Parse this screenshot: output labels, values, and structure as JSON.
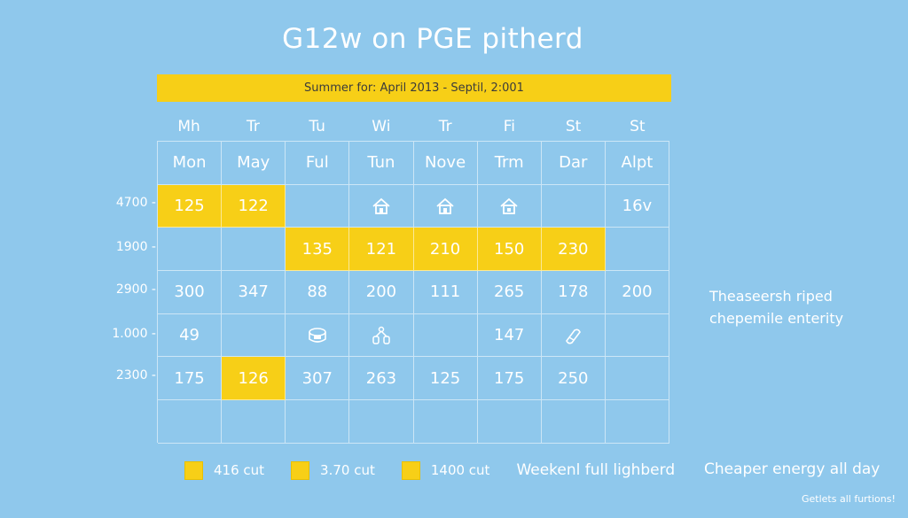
{
  "title": "G12w on PGE pitherd",
  "banner": "Summer for: April 2013 - Septil, 2:001",
  "days": [
    "Mh",
    "Tr",
    "Tu",
    "Wi",
    "Tr",
    "Fi",
    "St",
    "St"
  ],
  "y_labels": [
    "4700",
    "1900",
    "2900",
    "1.000",
    "2300"
  ],
  "rows": [
    [
      "Mon",
      "May",
      "Ful",
      "Tun",
      "Nove",
      "Trm",
      "Dar",
      "Alpt"
    ],
    [
      "125",
      "122",
      "",
      "house-icon",
      "house-icon",
      "house-icon",
      "",
      "16v"
    ],
    [
      "",
      "",
      "135",
      "121",
      "210",
      "150",
      "230",
      ""
    ],
    [
      "300",
      "347",
      "88",
      "200",
      "111",
      "265",
      "178",
      "200"
    ],
    [
      "49",
      "",
      "appliance-icon",
      "appliance-icon",
      "",
      "147",
      "appliance-icon",
      ""
    ],
    [
      "175",
      "126",
      "307",
      "263",
      "125",
      "175",
      "250",
      ""
    ],
    [
      "",
      "",
      "",
      "",
      "",
      "",
      "",
      ""
    ]
  ],
  "side_note": "Theaseersh riped chepemile enterity",
  "legend": [
    {
      "label": "416 cut"
    },
    {
      "label": "3.70 cut"
    },
    {
      "label": "1400 cut"
    }
  ],
  "legend_text": "Weekenl full lighberd",
  "right_note": "Cheaper energy all day",
  "footer": "Getlets all furtions!",
  "colors": {
    "background": "#8fc8ec",
    "highlight": "#f7cf17"
  }
}
